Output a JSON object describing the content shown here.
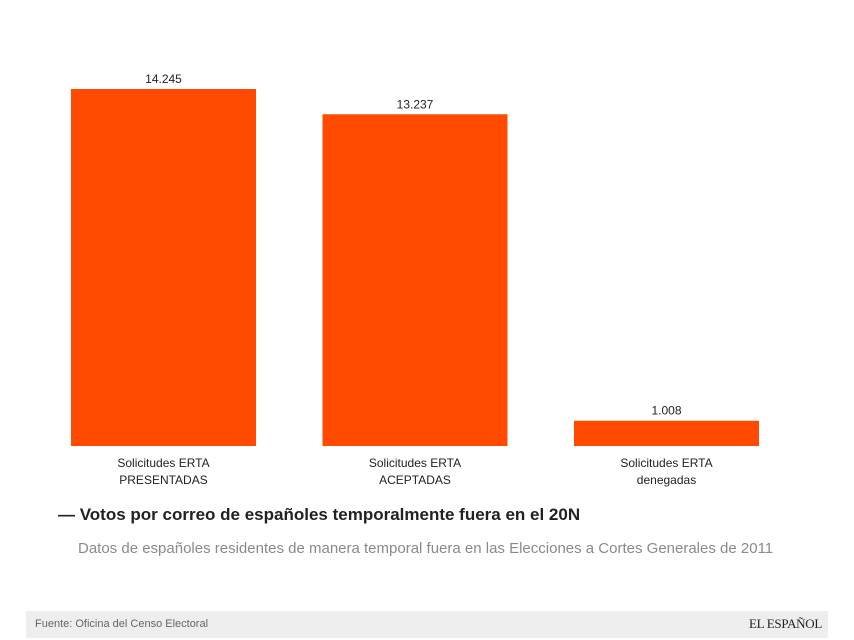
{
  "chart_data": {
    "type": "bar",
    "categories": [
      [
        "Solicitudes ERTA",
        "PRESENTADAS"
      ],
      [
        "Solicitudes ERTA",
        "ACEPTADAS"
      ],
      [
        "Solicitudes ERTA",
        "denegadas"
      ]
    ],
    "values": [
      14245,
      13237,
      1008
    ],
    "value_labels": [
      "14.245",
      "13.237",
      "1.008"
    ],
    "ylim": [
      0,
      14245
    ],
    "bar_color": "#ff4a00",
    "grid": false,
    "title": "— Votos por correo de españoles temporalmente fuera en el 20N",
    "subtitle": "Datos de españoles residentes de manera temporal fuera en las Elecciones a Cortes Generales de 2011",
    "xlabel": "",
    "ylabel": ""
  },
  "footer": {
    "source": "Fuente: Oficina del Censo Electoral",
    "brand": "EL ESPAÑOL"
  }
}
